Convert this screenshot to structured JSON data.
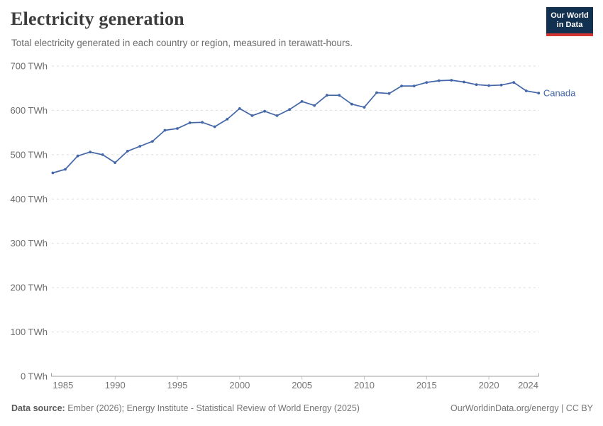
{
  "header": {
    "title": "Electricity generation",
    "subtitle": "Total electricity generated in each country or region, measured in terawatt-hours."
  },
  "logo": {
    "line1": "Our World",
    "line2": "in Data",
    "bg_color": "#12304f",
    "accent_color": "#d4342f"
  },
  "chart_data": {
    "type": "line",
    "title": "Electricity generation",
    "unit": "TWh",
    "x": [
      1985,
      1986,
      1987,
      1988,
      1989,
      1990,
      1991,
      1992,
      1993,
      1994,
      1995,
      1996,
      1997,
      1998,
      1999,
      2000,
      2001,
      2002,
      2003,
      2004,
      2005,
      2006,
      2007,
      2008,
      2009,
      2010,
      2011,
      2012,
      2013,
      2014,
      2015,
      2016,
      2017,
      2018,
      2019,
      2020,
      2021,
      2022,
      2023,
      2024
    ],
    "series": [
      {
        "name": "Canada",
        "color": "#4266a8",
        "values": [
          459,
          467,
          497,
          506,
          500,
          482,
          508,
          519,
          530,
          555,
          559,
          572,
          573,
          563,
          580,
          604,
          588,
          598,
          588,
          602,
          620,
          611,
          634,
          634,
          614,
          607,
          640,
          638,
          655,
          655,
          663,
          667,
          668,
          664,
          658,
          656,
          657,
          663,
          644,
          639
        ]
      }
    ],
    "ylim": [
      0,
      700
    ],
    "yticks": [
      0,
      100,
      200,
      300,
      400,
      500,
      600,
      700
    ],
    "ytick_suffix": " TWh",
    "xticks": [
      1985,
      1990,
      1995,
      2000,
      2005,
      2010,
      2015,
      2020,
      2024
    ],
    "grid": "horizontal-dashed",
    "legend": "line-end-label",
    "grid_color": "#dcdcdc",
    "axis_color": "#a0a0a0",
    "tick_label_color": "#6e6e6e"
  },
  "footer": {
    "source_label": "Data source:",
    "source_text": " Ember (2026); Energy Institute - Statistical Review of World Energy (2025)",
    "credit": "OurWorldinData.org/energy | CC BY"
  }
}
